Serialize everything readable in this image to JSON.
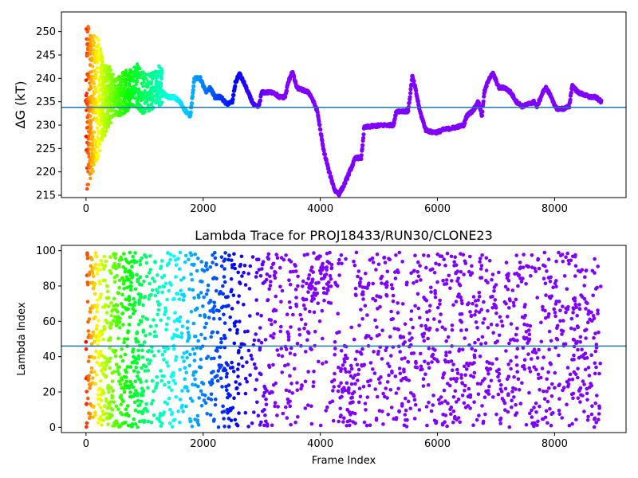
{
  "chart_data": [
    {
      "type": "scatter",
      "title": "",
      "xlabel": "",
      "ylabel": "ΔG (kT)",
      "xlim": [
        -420,
        9220
      ],
      "ylim": [
        214.5,
        254.2
      ],
      "xticks": [
        0,
        2000,
        4000,
        6000,
        8000
      ],
      "yticks": [
        215,
        220,
        225,
        230,
        235,
        240,
        245,
        250
      ],
      "hline": 233.8,
      "hline_color": "#1f77b4",
      "colormap": "rainbow (reversed along frame index)",
      "grid": false,
      "legend": "none",
      "x_max_frame": 8800,
      "trace": [
        [
          0,
          235
        ],
        [
          100,
          236
        ],
        [
          200,
          233
        ],
        [
          300,
          234
        ],
        [
          400,
          236
        ],
        [
          500,
          235
        ],
        [
          600,
          237
        ],
        [
          700,
          236
        ],
        [
          800,
          238
        ],
        [
          900,
          237
        ],
        [
          1000,
          236
        ],
        [
          1100,
          237
        ],
        [
          1200,
          238
        ],
        [
          1300,
          237
        ],
        [
          1400,
          236
        ],
        [
          1500,
          236
        ],
        [
          1600,
          235
        ],
        [
          1700,
          233
        ],
        [
          1780,
          232
        ],
        [
          1850,
          240
        ],
        [
          1950,
          240
        ],
        [
          2050,
          237
        ],
        [
          2120,
          238
        ],
        [
          2200,
          236
        ],
        [
          2300,
          236
        ],
        [
          2400,
          234.5
        ],
        [
          2500,
          235
        ],
        [
          2550,
          239
        ],
        [
          2620,
          241
        ],
        [
          2700,
          239
        ],
        [
          2800,
          236
        ],
        [
          2880,
          234
        ],
        [
          2950,
          234
        ],
        [
          3000,
          237
        ],
        [
          3100,
          237
        ],
        [
          3200,
          237
        ],
        [
          3300,
          236
        ],
        [
          3400,
          236
        ],
        [
          3450,
          239
        ],
        [
          3520,
          241.5
        ],
        [
          3600,
          238
        ],
        [
          3700,
          237.5
        ],
        [
          3800,
          237
        ],
        [
          3850,
          236
        ],
        [
          3950,
          233
        ],
        [
          4050,
          225
        ],
        [
          4150,
          220
        ],
        [
          4250,
          216
        ],
        [
          4320,
          215.3
        ],
        [
          4400,
          217
        ],
        [
          4500,
          220
        ],
        [
          4600,
          223
        ],
        [
          4700,
          223
        ],
        [
          4750,
          229.5
        ],
        [
          4900,
          229.8
        ],
        [
          5100,
          230
        ],
        [
          5250,
          230
        ],
        [
          5300,
          233
        ],
        [
          5400,
          233
        ],
        [
          5500,
          233
        ],
        [
          5530,
          236
        ],
        [
          5570,
          240.5
        ],
        [
          5620,
          238
        ],
        [
          5700,
          233
        ],
        [
          5800,
          229
        ],
        [
          5900,
          228.5
        ],
        [
          6000,
          228.5
        ],
        [
          6100,
          229
        ],
        [
          6300,
          229.5
        ],
        [
          6450,
          230
        ],
        [
          6500,
          232
        ],
        [
          6600,
          233
        ],
        [
          6700,
          235
        ],
        [
          6760,
          232
        ],
        [
          6800,
          237
        ],
        [
          6880,
          240
        ],
        [
          6950,
          241
        ],
        [
          7050,
          238
        ],
        [
          7150,
          238
        ],
        [
          7250,
          237
        ],
        [
          7350,
          235
        ],
        [
          7450,
          234
        ],
        [
          7550,
          234.5
        ],
        [
          7650,
          235
        ],
        [
          7700,
          234
        ],
        [
          7800,
          237
        ],
        [
          7850,
          238
        ],
        [
          7950,
          236
        ],
        [
          8000,
          234
        ],
        [
          8050,
          233.5
        ],
        [
          8150,
          233.5
        ],
        [
          8250,
          234
        ],
        [
          8300,
          238.5
        ],
        [
          8400,
          237
        ],
        [
          8500,
          236.5
        ],
        [
          8600,
          236
        ],
        [
          8700,
          236
        ],
        [
          8750,
          235.5
        ],
        [
          8800,
          235
        ]
      ],
      "early_scatter_ranges": [
        [
          0,
          215.3,
          253.3
        ],
        [
          60,
          218,
          250
        ],
        [
          100,
          219,
          249
        ],
        [
          160,
          222,
          250
        ],
        [
          220,
          223,
          248
        ],
        [
          280,
          227,
          245
        ],
        [
          340,
          228,
          243
        ],
        [
          400,
          230,
          243
        ],
        [
          500,
          232,
          240
        ],
        [
          600,
          232,
          241
        ],
        [
          700,
          233,
          242
        ],
        [
          850,
          234,
          243.5
        ],
        [
          1000,
          232,
          241
        ],
        [
          1200,
          234,
          242
        ],
        [
          1300,
          234,
          243.5
        ]
      ]
    },
    {
      "type": "scatter",
      "title": "Lambda Trace for PROJ18433/RUN30/CLONE23",
      "xlabel": "Frame Index",
      "ylabel": "Lambda Index",
      "xlim": [
        -420,
        9220
      ],
      "ylim": [
        -3,
        103
      ],
      "xticks": [
        0,
        2000,
        4000,
        6000,
        8000
      ],
      "yticks": [
        0,
        20,
        40,
        60,
        80,
        100
      ],
      "hline": 46,
      "hline_color": "#1f77b4",
      "colormap": "rainbow (reversed along frame index)",
      "grid": false,
      "legend": "none",
      "x_max_frame": 8800,
      "lambda_min": 0,
      "lambda_max": 99
    }
  ]
}
